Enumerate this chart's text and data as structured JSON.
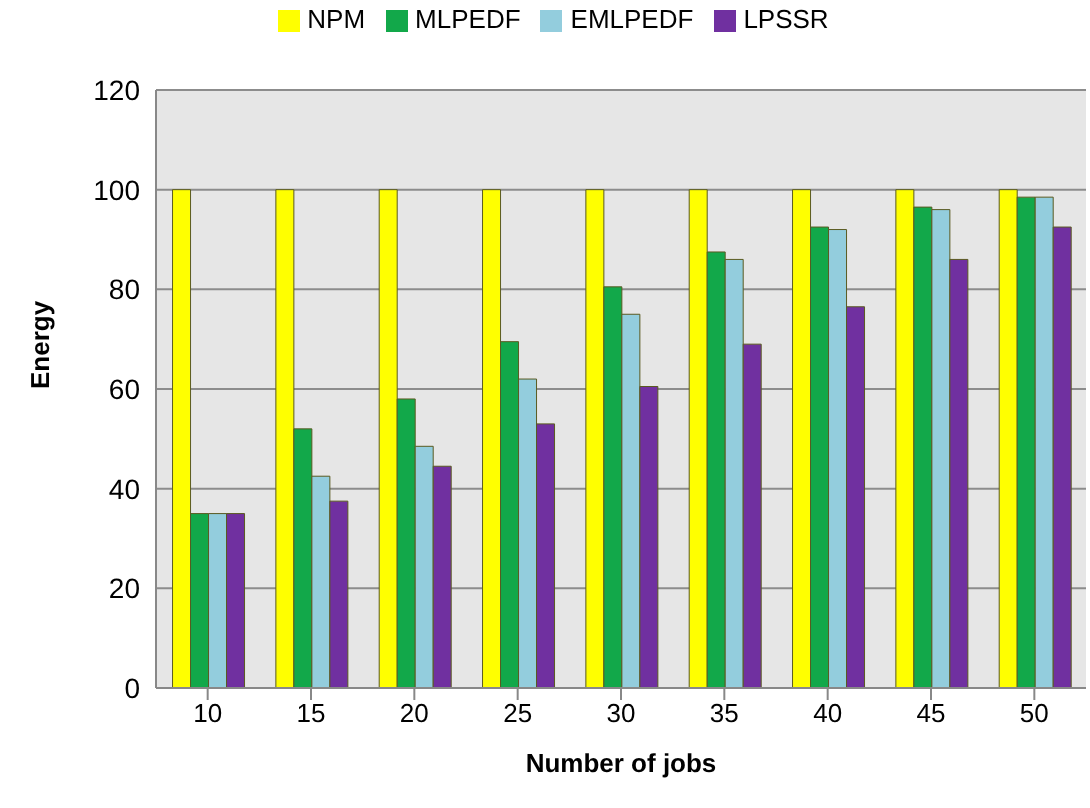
{
  "chart_data": {
    "type": "bar",
    "xlabel": "Number of jobs",
    "ylabel": "Energy",
    "categories": [
      "10",
      "15",
      "20",
      "25",
      "30",
      "35",
      "40",
      "45",
      "50"
    ],
    "series": [
      {
        "name": "NPM",
        "color": "#ffff00",
        "values": [
          100,
          100,
          100,
          100,
          100,
          100,
          100,
          100,
          100
        ]
      },
      {
        "name": "MLPEDF",
        "color": "#12a84a",
        "values": [
          35,
          52,
          58,
          69.5,
          80.5,
          87.5,
          92.5,
          96.5,
          98.5
        ]
      },
      {
        "name": "EMLPEDF",
        "color": "#93cddd",
        "values": [
          35,
          42.5,
          48.5,
          62,
          75,
          86,
          92,
          96,
          98.5
        ]
      },
      {
        "name": "LPSSR",
        "color": "#7030a0",
        "values": [
          35,
          37.5,
          44.5,
          53,
          60.5,
          69,
          76.5,
          86,
          92.5
        ]
      }
    ],
    "ylim": [
      0,
      120
    ],
    "yticks": [
      0,
      20,
      40,
      60,
      80,
      100,
      120
    ],
    "grid": "y",
    "legend": "top"
  }
}
